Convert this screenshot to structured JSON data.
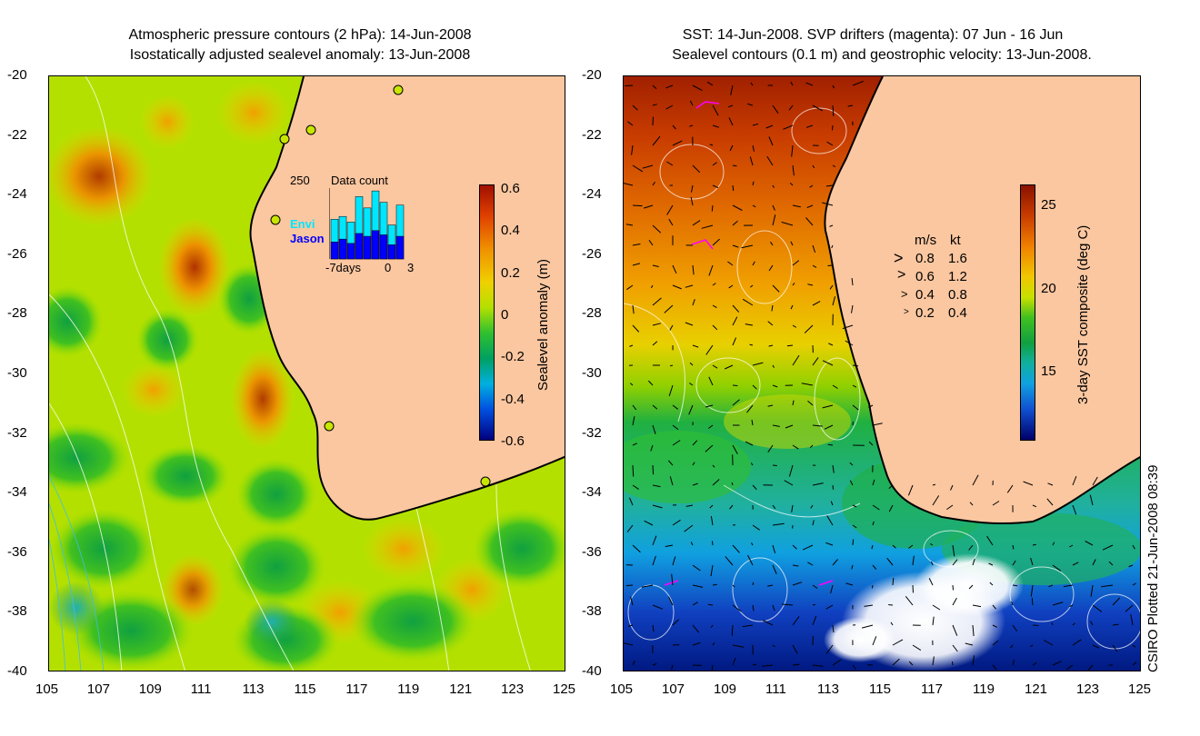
{
  "left_panel": {
    "title_line1": "Atmospheric pressure contours (2 hPa): 14-Jun-2008",
    "title_line2": "Isostatically adjusted sealevel anomaly: 13-Jun-2008",
    "colorbar_label": "Sealevel anomaly (m)",
    "colorbar_ticks": [
      "0.6",
      "0.4",
      "0.2",
      "0",
      "-0.2",
      "-0.4",
      "-0.6"
    ],
    "inset": {
      "max_label": "250",
      "title": "Data count",
      "series": [
        {
          "name": "Envi",
          "color": "#00e6ff"
        },
        {
          "name": "Jason",
          "color": "#0000ff"
        }
      ],
      "x_ticks": [
        "-7days",
        "0",
        "3"
      ],
      "bars_total": [
        140,
        150,
        130,
        220,
        180,
        240,
        200,
        120,
        190
      ],
      "bars_jason": [
        60,
        70,
        55,
        90,
        80,
        100,
        85,
        50,
        80
      ]
    }
  },
  "right_panel": {
    "title_line1": "SST: 14-Jun-2008. SVP drifters (magenta): 07 Jun - 16 Jun",
    "title_line2": "Sealevel contours (0.1 m) and geostrophic velocity: 13-Jun-2008.",
    "colorbar_label": "3-day SST composite (deg C)",
    "colorbar_ticks": [
      "25",
      "20",
      "15"
    ],
    "velocity_legend": {
      "header_ms": "m/s",
      "header_kt": "kt",
      "rows": [
        {
          "ms": "0.8",
          "kt": "1.6"
        },
        {
          "ms": "0.6",
          "kt": "1.2"
        },
        {
          "ms": "0.4",
          "kt": "0.8"
        },
        {
          "ms": "0.2",
          "kt": "0.4"
        }
      ]
    }
  },
  "axes": {
    "y_ticks": [
      "-20",
      "-22",
      "-24",
      "-26",
      "-28",
      "-30",
      "-32",
      "-34",
      "-36",
      "-38",
      "-40"
    ],
    "x_ticks": [
      "105",
      "107",
      "109",
      "111",
      "113",
      "115",
      "117",
      "119",
      "121",
      "123",
      "125"
    ]
  },
  "footer_credit": "CSIRO Plotted 21-Jun-2008 08:39",
  "colors": {
    "land": "#fbc7a0",
    "ssh_low": "#00007f",
    "ssh_high": "#a01000",
    "sst_low": "#00006a",
    "sst_high": "#8a1200"
  }
}
